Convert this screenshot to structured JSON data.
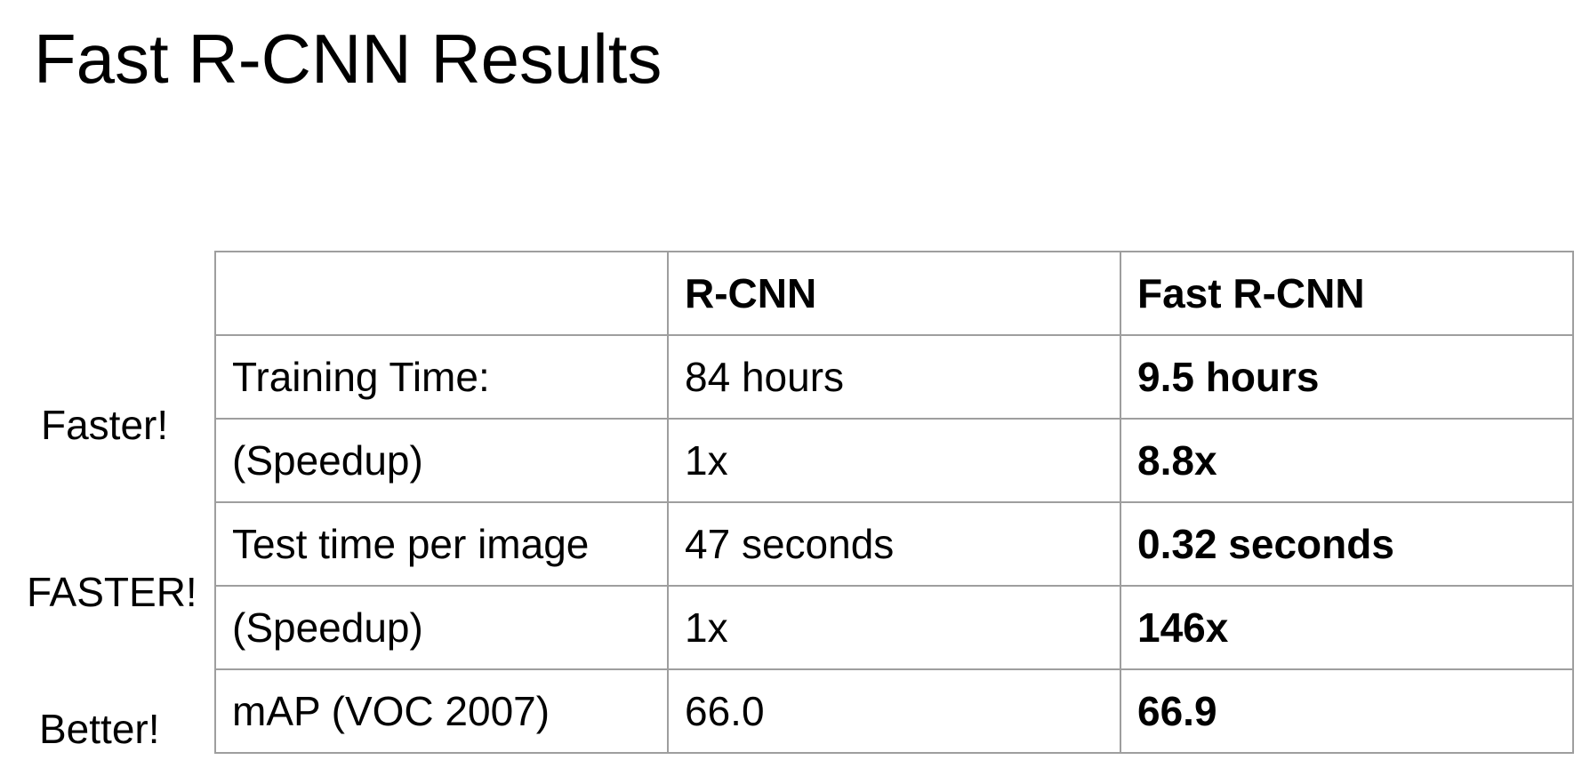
{
  "slide": {
    "title": "Fast R-CNN Results"
  },
  "side_notes": {
    "faster": "Faster!",
    "faster_caps": "FASTER!",
    "better": "Better!"
  },
  "table": {
    "headers": [
      "",
      "R-CNN",
      "Fast R-CNN"
    ],
    "rows": [
      [
        "Training Time:",
        "84 hours",
        "9.5 hours"
      ],
      [
        "(Speedup)",
        "1x",
        "8.8x"
      ],
      [
        "Test time per image",
        "47 seconds",
        "0.32 seconds"
      ],
      [
        "(Speedup)",
        "1x",
        "146x"
      ],
      [
        "mAP (VOC 2007)",
        "66.0",
        "66.9"
      ]
    ]
  }
}
